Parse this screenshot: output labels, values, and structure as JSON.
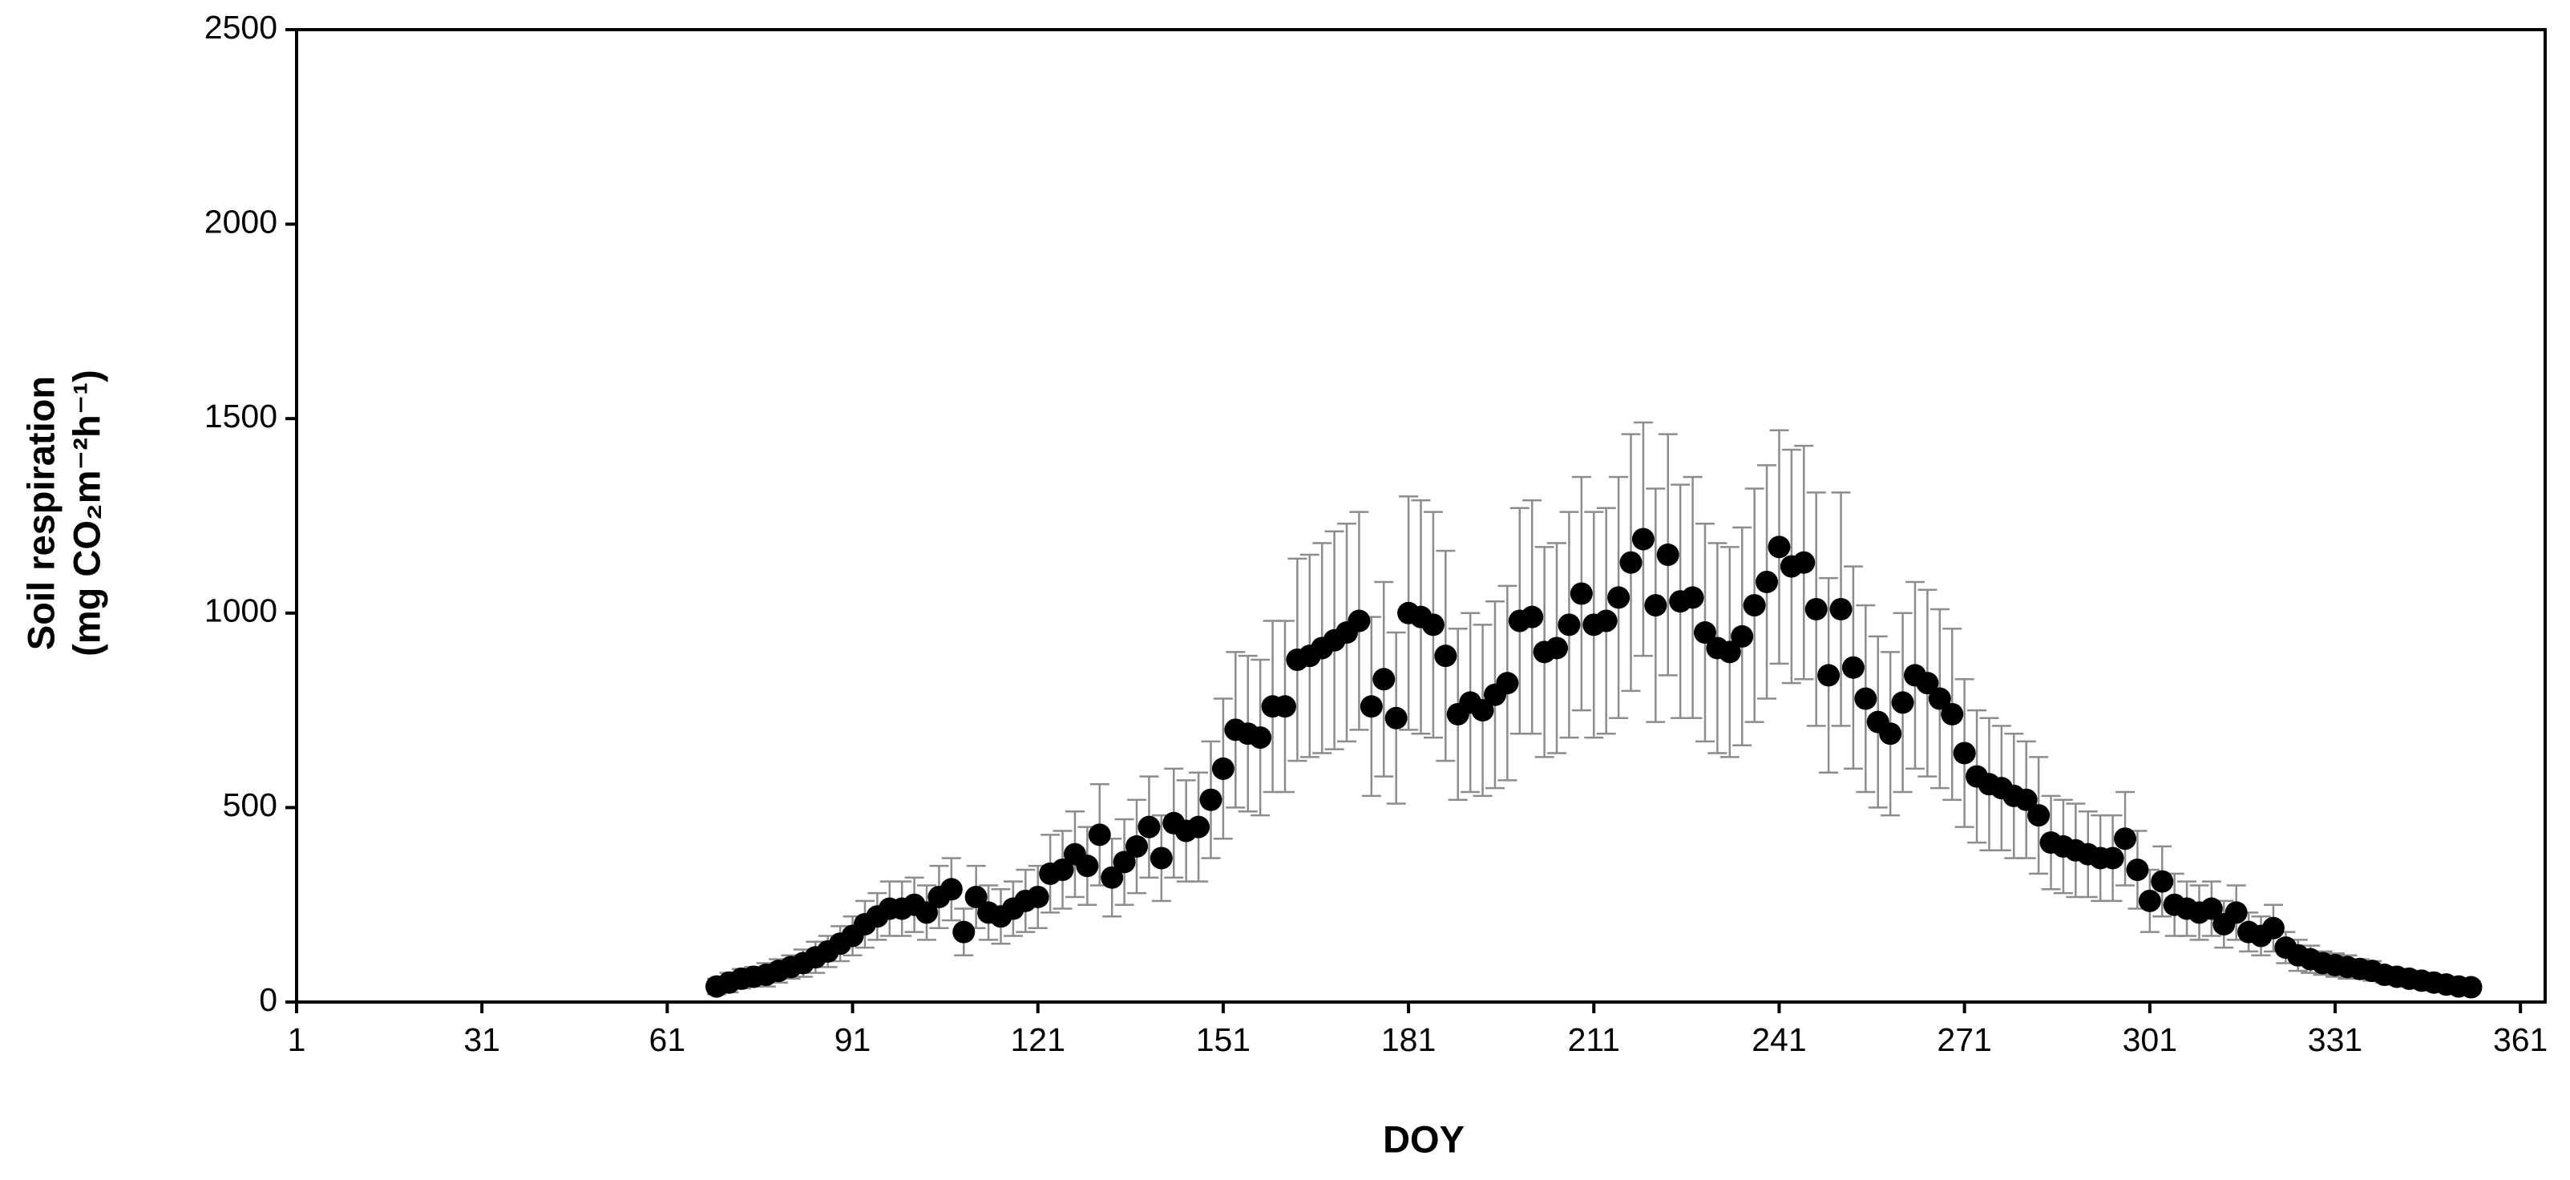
{
  "chart_data": {
    "type": "scatter",
    "xlabel": "DOY",
    "ylabel": [
      "Soil respiration",
      "(mg CO₂m⁻²h⁻¹)"
    ],
    "xlim": [
      1,
      365
    ],
    "ylim": [
      0,
      2500
    ],
    "xticks": [
      1,
      31,
      61,
      91,
      121,
      151,
      181,
      211,
      241,
      271,
      301,
      331,
      361
    ],
    "yticks": [
      0,
      500,
      1000,
      1500,
      2000,
      2500
    ],
    "color": "#000000",
    "error_color": "#8c8c8c",
    "x": [
      69,
      71,
      73,
      75,
      77,
      79,
      81,
      83,
      85,
      87,
      89,
      91,
      93,
      95,
      97,
      99,
      101,
      103,
      105,
      107,
      109,
      111,
      113,
      115,
      117,
      119,
      121,
      123,
      125,
      127,
      129,
      131,
      133,
      135,
      137,
      139,
      141,
      143,
      145,
      147,
      149,
      151,
      153,
      155,
      157,
      159,
      161,
      163,
      165,
      167,
      169,
      171,
      173,
      175,
      177,
      179,
      181,
      183,
      185,
      187,
      189,
      191,
      193,
      195,
      197,
      199,
      201,
      203,
      205,
      207,
      209,
      211,
      213,
      215,
      217,
      219,
      221,
      223,
      225,
      227,
      229,
      231,
      233,
      235,
      237,
      239,
      241,
      243,
      245,
      247,
      249,
      251,
      253,
      255,
      257,
      259,
      261,
      263,
      265,
      267,
      269,
      271,
      273,
      275,
      277,
      279,
      281,
      283,
      285,
      287,
      289,
      291,
      293,
      295,
      297,
      299,
      301,
      303,
      305,
      307,
      309,
      311,
      313,
      315,
      317,
      319,
      321,
      323,
      325,
      327,
      329,
      331,
      333,
      335,
      337,
      339,
      341,
      343,
      345,
      347,
      349,
      351,
      353
    ],
    "values": [
      40,
      50,
      60,
      65,
      70,
      80,
      90,
      100,
      115,
      130,
      150,
      170,
      200,
      220,
      240,
      240,
      250,
      230,
      270,
      290,
      180,
      270,
      230,
      220,
      240,
      260,
      270,
      330,
      340,
      380,
      350,
      430,
      320,
      360,
      400,
      450,
      370,
      460,
      440,
      450,
      520,
      600,
      700,
      690,
      680,
      760,
      760,
      880,
      890,
      910,
      930,
      950,
      980,
      760,
      830,
      730,
      1000,
      990,
      970,
      890,
      740,
      770,
      750,
      790,
      820,
      980,
      990,
      900,
      910,
      970,
      1050,
      970,
      980,
      1040,
      1130,
      1190,
      1020,
      1150,
      1030,
      1040,
      950,
      910,
      900,
      940,
      1020,
      1080,
      1170,
      1120,
      1130,
      1010,
      840,
      1010,
      860,
      780,
      720,
      690,
      770,
      840,
      820,
      780,
      740,
      640,
      580,
      560,
      550,
      530,
      520,
      480,
      410,
      400,
      390,
      380,
      370,
      370,
      420,
      340,
      260,
      310,
      250,
      240,
      230,
      240,
      200,
      230,
      180,
      170,
      190,
      140,
      120,
      110,
      100,
      95,
      90,
      85,
      80,
      70,
      65,
      60,
      55,
      50,
      45,
      40,
      38
    ],
    "errors": [
      20,
      25,
      25,
      25,
      30,
      30,
      30,
      35,
      40,
      40,
      45,
      50,
      60,
      60,
      70,
      70,
      70,
      70,
      80,
      80,
      60,
      80,
      70,
      70,
      70,
      80,
      80,
      100,
      100,
      110,
      100,
      130,
      100,
      110,
      120,
      130,
      110,
      140,
      130,
      140,
      150,
      180,
      200,
      200,
      200,
      220,
      220,
      260,
      260,
      270,
      280,
      280,
      280,
      230,
      250,
      220,
      300,
      300,
      290,
      270,
      220,
      230,
      220,
      240,
      250,
      290,
      300,
      270,
      270,
      290,
      300,
      290,
      290,
      310,
      330,
      300,
      300,
      310,
      300,
      310,
      280,
      270,
      270,
      280,
      300,
      300,
      300,
      300,
      300,
      300,
      250,
      300,
      260,
      240,
      220,
      210,
      230,
      240,
      240,
      230,
      220,
      190,
      170,
      170,
      160,
      160,
      150,
      150,
      120,
      120,
      120,
      110,
      110,
      110,
      120,
      100,
      80,
      90,
      80,
      70,
      70,
      70,
      60,
      70,
      50,
      50,
      60,
      40,
      40,
      35,
      30,
      30,
      30,
      25,
      25,
      20,
      20,
      20,
      20,
      20,
      15,
      15,
      15
    ]
  }
}
